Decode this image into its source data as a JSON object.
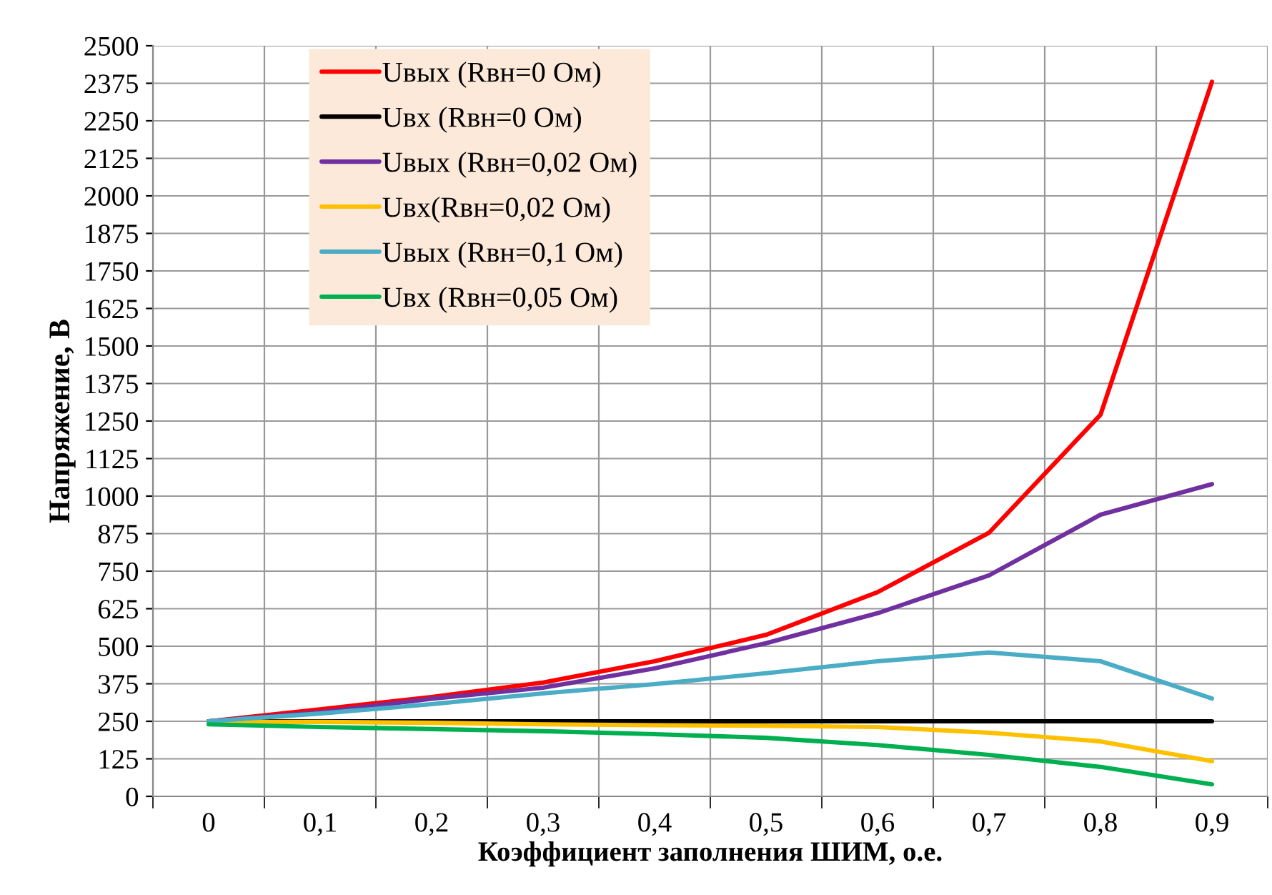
{
  "chart_data": {
    "type": "line",
    "xlabel": "Коэффициент заполнения ШИМ, о.е.",
    "ylabel": "Напряжение, В",
    "categories": [
      "0",
      "0,1",
      "0,2",
      "0,3",
      "0,4",
      "0,5",
      "0,6",
      "0,7",
      "0,8",
      "0,9"
    ],
    "series": [
      {
        "name": "Uвых (Rвн=0 Ом)",
        "color": "#ff0000",
        "values": [
          250,
          290,
          331,
          379,
          450,
          538,
          680,
          878,
          1271,
          2380
        ]
      },
      {
        "name": "Uвх (Rвн=0 Ом)",
        "color": "#000000",
        "values": [
          250,
          250,
          250,
          250,
          250,
          250,
          250,
          250,
          250,
          250
        ]
      },
      {
        "name": "Uвых (Rвн=0,02 Ом)",
        "color": "#7030a0",
        "values": [
          250,
          280,
          325,
          362,
          426,
          510,
          610,
          736,
          938,
          1040
        ]
      },
      {
        "name": "Uвх(Rвн=0,02 Ом)",
        "color": "#ffc000",
        "values": [
          248,
          248,
          245,
          240,
          237,
          235,
          231,
          212,
          183,
          117
        ]
      },
      {
        "name": "Uвых (Rвн=0,1 Ом)",
        "color": "#4bacc6",
        "values": [
          250,
          276,
          307,
          343,
          374,
          410,
          450,
          479,
          450,
          326
        ]
      },
      {
        "name": "Uвх (Rвн=0,05 Ом)",
        "color": "#00b050",
        "values": [
          240,
          231,
          224,
          217,
          207,
          195,
          171,
          138,
          98,
          40
        ]
      }
    ],
    "ylim": [
      0,
      2500
    ],
    "yticks": [
      0,
      125,
      250,
      375,
      500,
      625,
      750,
      875,
      1000,
      1125,
      1250,
      1375,
      1500,
      1625,
      1750,
      1875,
      2000,
      2125,
      2250,
      2375,
      2500
    ],
    "grid": true,
    "legend": "top left",
    "marker": "none",
    "line_style": "solid"
  }
}
